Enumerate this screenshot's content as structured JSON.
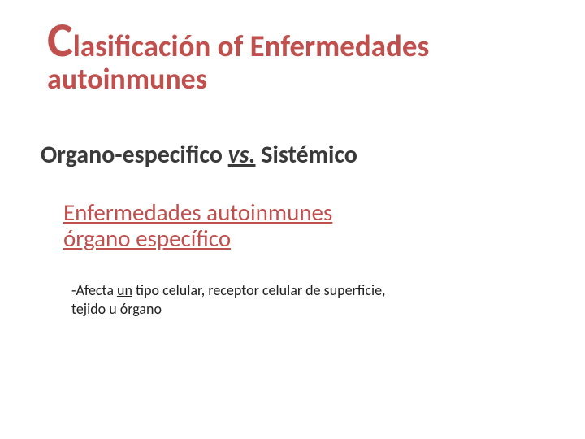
{
  "colors": {
    "accent": "#c0504d",
    "text_dark": "#3a3a3a",
    "text_body": "#222222",
    "background": "#ffffff"
  },
  "typography": {
    "title_initial_fontsize": 60,
    "title_fontsize": 37,
    "title_line2_fontsize": 36,
    "subtitle_fontsize": 30,
    "section_fontsize": 29,
    "bullet_fontsize": 18,
    "font_family": "Calibri, Arial, sans-serif"
  },
  "title": {
    "initial": "C",
    "line1_rest": "lasificación of Enfermedades",
    "line2": "autoinmunes"
  },
  "subtitle": {
    "part1": "Organo-especifico ",
    "vs": "vs.",
    "part2": " Sistémico"
  },
  "section": {
    "line1": "Enfermedades autoinmunes",
    "line2": "órgano específico"
  },
  "bullet": {
    "prefix": "-Afecta ",
    "underlined": "un",
    "rest_line1": " tipo celular, receptor celular de superficie,",
    "line2": " tejido u órgano"
  }
}
